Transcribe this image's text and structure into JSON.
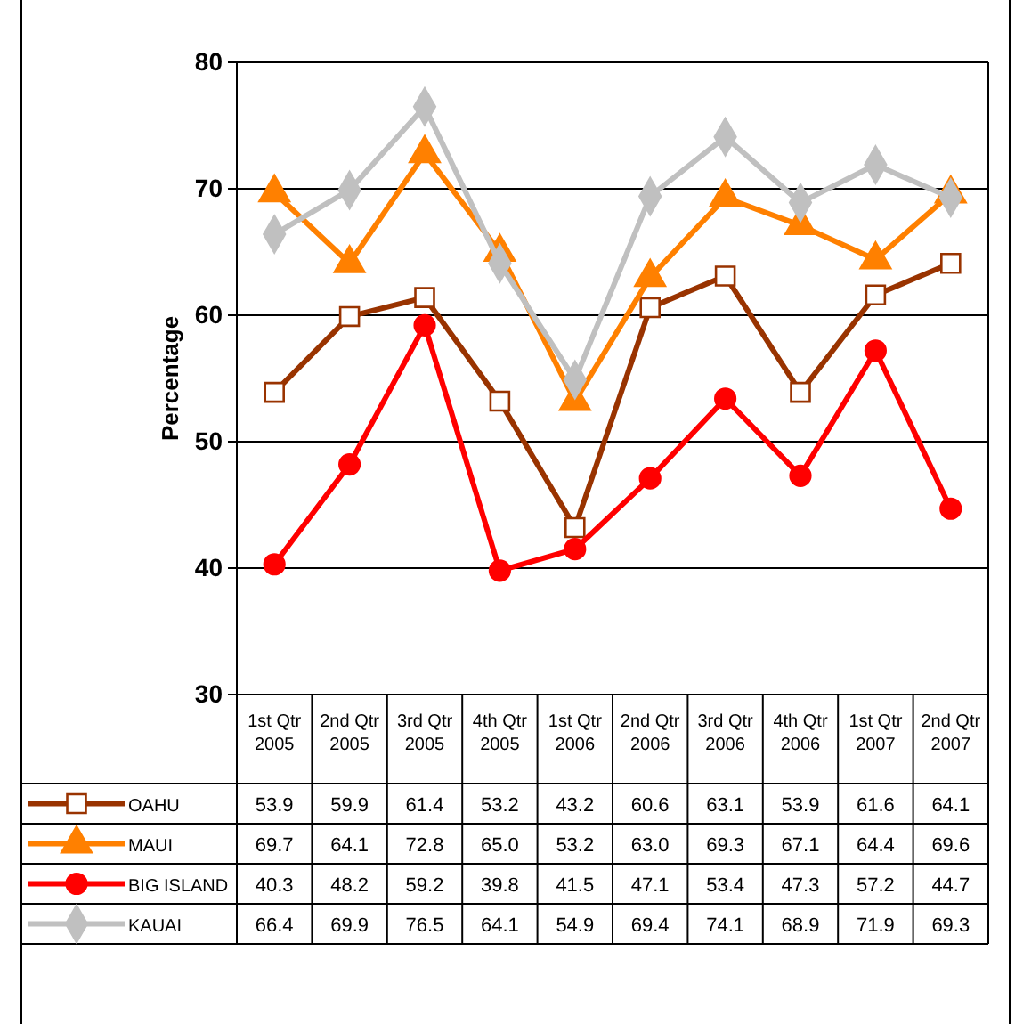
{
  "chart_data": {
    "type": "line",
    "ylabel": "Percentage",
    "categories": [
      "1st Qtr 2005",
      "2nd Qtr 2005",
      "3rd Qtr 2005",
      "4th Qtr 2005",
      "1st Qtr 2006",
      "2nd Qtr 2006",
      "3rd Qtr 2006",
      "4th Qtr 2006",
      "1st Qtr 2007",
      "2nd Qtr 2007"
    ],
    "series": [
      {
        "name": "OAHU",
        "color": "#993300",
        "marker": "square",
        "values": [
          53.9,
          59.9,
          61.4,
          53.2,
          43.2,
          60.6,
          63.1,
          53.9,
          61.6,
          64.1
        ],
        "value_labels": [
          "53.9",
          "59.9",
          "61.4",
          "53.2",
          "43.2",
          "60.6",
          "63.1",
          "53.9",
          "61.6",
          "64.1"
        ]
      },
      {
        "name": "MAUI",
        "color": "#ff8000",
        "marker": "triangle",
        "values": [
          69.7,
          64.1,
          72.8,
          65.0,
          53.2,
          63.0,
          69.3,
          67.1,
          64.4,
          69.6
        ],
        "value_labels": [
          "69.7",
          "64.1",
          "72.8",
          "65.0",
          "53.2",
          "63.0",
          "69.3",
          "67.1",
          "64.4",
          "69.6"
        ]
      },
      {
        "name": "BIG ISLAND",
        "color": "#ff0000",
        "marker": "circle",
        "values": [
          40.3,
          48.2,
          59.2,
          39.8,
          41.5,
          47.1,
          53.4,
          47.3,
          57.2,
          44.7
        ],
        "value_labels": [
          "40.3",
          "48.2",
          "59.2",
          "39.8",
          "41.5",
          "47.1",
          "53.4",
          "47.3",
          "57.2",
          "44.7"
        ]
      },
      {
        "name": "KAUAI",
        "color": "#c0c0c0",
        "marker": "diamond",
        "values": [
          66.4,
          69.9,
          76.5,
          64.1,
          54.9,
          69.4,
          74.1,
          68.9,
          71.9,
          69.3
        ],
        "value_labels": [
          "66.4",
          "69.9",
          "76.5",
          "64.1",
          "54.9",
          "69.4",
          "74.1",
          "68.9",
          "71.9",
          "69.3"
        ]
      }
    ],
    "ylim": [
      30,
      80
    ],
    "yticks": [
      30,
      40,
      50,
      60,
      70,
      80
    ],
    "grid": "y",
    "legend": "bottom",
    "line_style": "solid"
  }
}
